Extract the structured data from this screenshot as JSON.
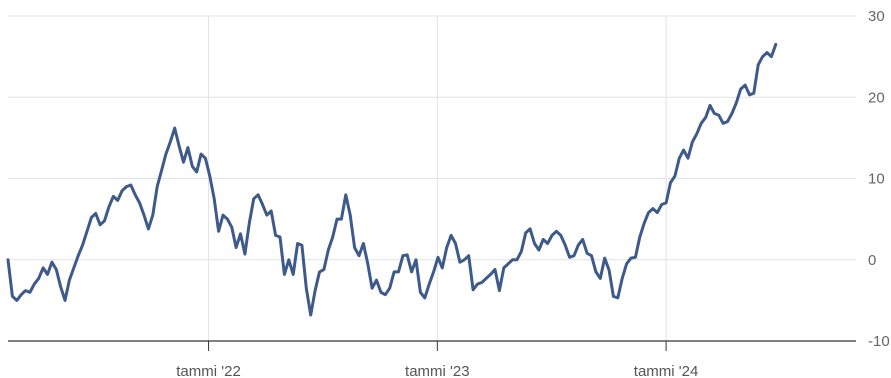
{
  "colors": {
    "line": "#3d5a8a",
    "grid": "#e3e3e3",
    "axis": "#333333",
    "tick_text": "#666666"
  },
  "chart_data": {
    "type": "line",
    "title": "",
    "xlabel": "",
    "ylabel": "",
    "xlim": [
      "2021-02-15",
      "2024-10-30"
    ],
    "ylim": [
      -10,
      30
    ],
    "grid": true,
    "legend": "none",
    "y_axis_position": "right",
    "y_ticks": [
      30,
      20,
      10,
      0,
      -10
    ],
    "y_tick_labels": [
      "30",
      "20",
      "10",
      "0",
      "-10"
    ],
    "x_ticks": [
      "2022-01-01",
      "2023-01-01",
      "2024-01-01"
    ],
    "x_tick_labels": [
      "tammi '22",
      "tammi '23",
      "tammi '24"
    ],
    "series": [
      {
        "values": [
          [
            "2021-02-15",
            0.0
          ],
          [
            "2021-02-22",
            -4.5
          ],
          [
            "2021-03-01",
            -5.0
          ],
          [
            "2021-03-08",
            -4.3
          ],
          [
            "2021-03-15",
            -3.8
          ],
          [
            "2021-03-22",
            -4.0
          ],
          [
            "2021-03-29",
            -3.0
          ],
          [
            "2021-04-05",
            -2.3
          ],
          [
            "2021-04-12",
            -1.0
          ],
          [
            "2021-04-19",
            -1.8
          ],
          [
            "2021-04-26",
            -0.3
          ],
          [
            "2021-05-03",
            -1.2
          ],
          [
            "2021-05-10",
            -3.3
          ],
          [
            "2021-05-17",
            -5.0
          ],
          [
            "2021-05-24",
            -2.5
          ],
          [
            "2021-05-31",
            -1.0
          ],
          [
            "2021-06-07",
            0.5
          ],
          [
            "2021-06-14",
            1.8
          ],
          [
            "2021-06-21",
            3.5
          ],
          [
            "2021-06-28",
            5.2
          ],
          [
            "2021-07-05",
            5.7
          ],
          [
            "2021-07-12",
            4.3
          ],
          [
            "2021-07-19",
            4.8
          ],
          [
            "2021-07-26",
            6.5
          ],
          [
            "2021-08-02",
            7.8
          ],
          [
            "2021-08-09",
            7.3
          ],
          [
            "2021-08-16",
            8.5
          ],
          [
            "2021-08-23",
            9.0
          ],
          [
            "2021-08-30",
            9.2
          ],
          [
            "2021-09-06",
            8.0
          ],
          [
            "2021-09-13",
            7.0
          ],
          [
            "2021-09-20",
            5.5
          ],
          [
            "2021-09-27",
            3.8
          ],
          [
            "2021-10-04",
            5.5
          ],
          [
            "2021-10-11",
            9.0
          ],
          [
            "2021-10-18",
            11.0
          ],
          [
            "2021-10-25",
            13.0
          ],
          [
            "2021-11-01",
            14.5
          ],
          [
            "2021-11-08",
            16.2
          ],
          [
            "2021-11-15",
            14.0
          ],
          [
            "2021-11-22",
            12.0
          ],
          [
            "2021-11-29",
            13.8
          ],
          [
            "2021-12-06",
            11.5
          ],
          [
            "2021-12-13",
            10.8
          ],
          [
            "2021-12-20",
            13.0
          ],
          [
            "2021-12-27",
            12.5
          ],
          [
            "2022-01-03",
            10.3
          ],
          [
            "2022-01-10",
            7.5
          ],
          [
            "2022-01-17",
            3.5
          ],
          [
            "2022-01-24",
            5.5
          ],
          [
            "2022-01-31",
            5.0
          ],
          [
            "2022-02-07",
            4.0
          ],
          [
            "2022-02-14",
            1.5
          ],
          [
            "2022-02-21",
            3.2
          ],
          [
            "2022-02-28",
            0.7
          ],
          [
            "2022-03-07",
            4.5
          ],
          [
            "2022-03-14",
            7.5
          ],
          [
            "2022-03-21",
            8.0
          ],
          [
            "2022-03-28",
            6.8
          ],
          [
            "2022-04-04",
            5.5
          ],
          [
            "2022-04-11",
            6.0
          ],
          [
            "2022-04-18",
            3.0
          ],
          [
            "2022-04-25",
            2.8
          ],
          [
            "2022-05-02",
            -1.8
          ],
          [
            "2022-05-09",
            0.0
          ],
          [
            "2022-05-16",
            -1.8
          ],
          [
            "2022-05-23",
            2.0
          ],
          [
            "2022-05-30",
            1.8
          ],
          [
            "2022-06-06",
            -3.5
          ],
          [
            "2022-06-13",
            -6.8
          ],
          [
            "2022-06-20",
            -3.8
          ],
          [
            "2022-06-27",
            -1.5
          ],
          [
            "2022-07-04",
            -1.2
          ],
          [
            "2022-07-11",
            1.2
          ],
          [
            "2022-07-18",
            2.8
          ],
          [
            "2022-07-25",
            5.0
          ],
          [
            "2022-08-01",
            5.0
          ],
          [
            "2022-08-08",
            8.0
          ],
          [
            "2022-08-15",
            5.5
          ],
          [
            "2022-08-22",
            1.5
          ],
          [
            "2022-08-29",
            0.5
          ],
          [
            "2022-09-05",
            2.0
          ],
          [
            "2022-09-12",
            -0.5
          ],
          [
            "2022-09-19",
            -3.5
          ],
          [
            "2022-09-26",
            -2.5
          ],
          [
            "2022-10-03",
            -4.0
          ],
          [
            "2022-10-10",
            -4.3
          ],
          [
            "2022-10-17",
            -3.5
          ],
          [
            "2022-10-24",
            -1.5
          ],
          [
            "2022-10-31",
            -1.5
          ],
          [
            "2022-11-07",
            0.5
          ],
          [
            "2022-11-14",
            0.6
          ],
          [
            "2022-11-21",
            -1.5
          ],
          [
            "2022-11-28",
            0.0
          ],
          [
            "2022-12-05",
            -4.0
          ],
          [
            "2022-12-12",
            -4.7
          ],
          [
            "2022-12-19",
            -3.0
          ],
          [
            "2022-12-26",
            -1.5
          ],
          [
            "2023-01-02",
            0.3
          ],
          [
            "2023-01-09",
            -1.0
          ],
          [
            "2023-01-16",
            1.5
          ],
          [
            "2023-01-23",
            3.0
          ],
          [
            "2023-01-30",
            2.0
          ],
          [
            "2023-02-06",
            -0.3
          ],
          [
            "2023-02-13",
            0.0
          ],
          [
            "2023-02-20",
            0.5
          ],
          [
            "2023-02-27",
            -3.7
          ],
          [
            "2023-03-06",
            -3.0
          ],
          [
            "2023-03-13",
            -2.8
          ],
          [
            "2023-03-20",
            -2.3
          ],
          [
            "2023-03-27",
            -1.8
          ],
          [
            "2023-04-03",
            -1.2
          ],
          [
            "2023-04-10",
            -3.8
          ],
          [
            "2023-04-17",
            -1.0
          ],
          [
            "2023-04-24",
            -0.5
          ],
          [
            "2023-05-01",
            0.0
          ],
          [
            "2023-05-08",
            0.0
          ],
          [
            "2023-05-15",
            1.0
          ],
          [
            "2023-05-22",
            3.3
          ],
          [
            "2023-05-29",
            3.8
          ],
          [
            "2023-06-05",
            2.0
          ],
          [
            "2023-06-12",
            1.2
          ],
          [
            "2023-06-19",
            2.5
          ],
          [
            "2023-06-26",
            2.0
          ],
          [
            "2023-07-03",
            3.0
          ],
          [
            "2023-07-10",
            3.5
          ],
          [
            "2023-07-17",
            3.0
          ],
          [
            "2023-07-24",
            1.8
          ],
          [
            "2023-07-31",
            0.3
          ],
          [
            "2023-08-07",
            0.5
          ],
          [
            "2023-08-14",
            1.8
          ],
          [
            "2023-08-21",
            2.5
          ],
          [
            "2023-08-28",
            0.8
          ],
          [
            "2023-09-04",
            0.5
          ],
          [
            "2023-09-11",
            -1.5
          ],
          [
            "2023-09-18",
            -2.3
          ],
          [
            "2023-09-25",
            0.2
          ],
          [
            "2023-10-02",
            -1.3
          ],
          [
            "2023-10-09",
            -4.5
          ],
          [
            "2023-10-16",
            -4.7
          ],
          [
            "2023-10-23",
            -2.3
          ],
          [
            "2023-10-30",
            -0.5
          ],
          [
            "2023-11-06",
            0.2
          ],
          [
            "2023-11-13",
            0.3
          ],
          [
            "2023-11-20",
            2.8
          ],
          [
            "2023-11-27",
            4.5
          ],
          [
            "2023-12-04",
            5.8
          ],
          [
            "2023-12-11",
            6.3
          ],
          [
            "2023-12-18",
            5.8
          ],
          [
            "2023-12-25",
            6.8
          ],
          [
            "2024-01-01",
            7.0
          ],
          [
            "2024-01-08",
            9.5
          ],
          [
            "2024-01-15",
            10.3
          ],
          [
            "2024-01-22",
            12.5
          ],
          [
            "2024-01-29",
            13.5
          ],
          [
            "2024-02-05",
            12.5
          ],
          [
            "2024-02-12",
            14.5
          ],
          [
            "2024-02-19",
            15.5
          ],
          [
            "2024-02-26",
            16.8
          ],
          [
            "2024-03-04",
            17.5
          ],
          [
            "2024-03-11",
            19.0
          ],
          [
            "2024-03-18",
            18.0
          ],
          [
            "2024-03-25",
            17.8
          ],
          [
            "2024-04-01",
            16.8
          ],
          [
            "2024-04-08",
            17.0
          ],
          [
            "2024-04-15",
            18.0
          ],
          [
            "2024-04-22",
            19.3
          ],
          [
            "2024-04-29",
            21.0
          ],
          [
            "2024-05-06",
            21.5
          ],
          [
            "2024-05-13",
            20.3
          ],
          [
            "2024-05-20",
            20.5
          ],
          [
            "2024-05-27",
            24.0
          ],
          [
            "2024-06-03",
            25.0
          ],
          [
            "2024-06-10",
            25.5
          ],
          [
            "2024-06-17",
            25.0
          ],
          [
            "2024-06-24",
            26.5
          ]
        ]
      }
    ]
  }
}
